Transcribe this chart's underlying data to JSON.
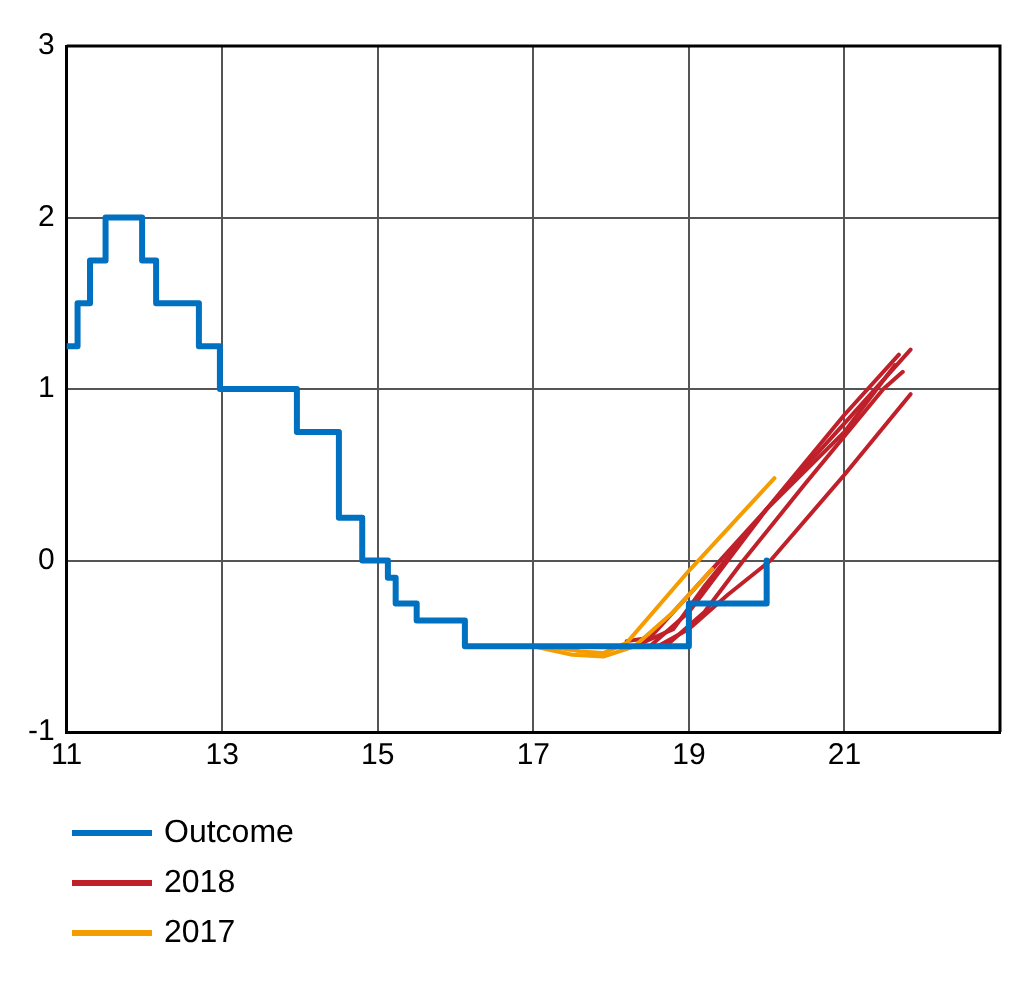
{
  "chart_data": {
    "type": "line",
    "legend": "bottom",
    "grid": true,
    "marker": "none",
    "line_style": "solid",
    "xlim": [
      11,
      23
    ],
    "xticks": [
      11,
      13,
      15,
      17,
      19,
      21
    ],
    "ylim": [
      -1,
      3
    ],
    "yticks": [
      -1,
      0,
      1,
      2,
      3
    ],
    "series": [
      {
        "name": "Outcome",
        "type": "step",
        "color": "#0070c0",
        "x": [
          11,
          11.14,
          11.3,
          11.5,
          11.97,
          12.15,
          12.7,
          12.97,
          13.96,
          14.5,
          14.8,
          15.13,
          15.23,
          15.5,
          16.12,
          19,
          20
        ],
        "values": [
          1.25,
          1.5,
          1.75,
          2,
          1.75,
          1.5,
          1.25,
          1,
          0.75,
          0.25,
          0,
          -0.1,
          -0.25,
          -0.35,
          -0.5,
          -0.25,
          0
        ]
      },
      {
        "name": "2017",
        "color": "#f59c00",
        "x": [
          17.2,
          17.6,
          17.9,
          18.2,
          19,
          20.1
        ],
        "values": [
          -0.5,
          -0.53,
          -0.54,
          -0.48,
          -0.06,
          0.48
        ]
      },
      {
        "color": "#f59c00",
        "x": [
          17,
          17.5,
          17.9,
          18.3,
          18.8,
          19.3
        ],
        "values": [
          -0.5,
          -0.55,
          -0.56,
          -0.5,
          -0.3,
          -0.05
        ]
      },
      {
        "name": "2018",
        "color": "#c0202a",
        "x": [
          18.2,
          18.5,
          19,
          20,
          21,
          21.65
        ],
        "values": [
          -0.47,
          -0.45,
          -0.2,
          0.3,
          0.75,
          1.14
        ]
      },
      {
        "color": "#c0202a",
        "x": [
          18.3,
          18.8,
          19.2,
          20,
          21,
          21.85
        ],
        "values": [
          -0.5,
          -0.4,
          -0.15,
          0.3,
          0.8,
          1.23
        ]
      },
      {
        "color": "#c0202a",
        "x": [
          18.6,
          19,
          19.5,
          20.05,
          21,
          21.85
        ],
        "values": [
          -0.5,
          -0.4,
          -0.2,
          0,
          0.5,
          0.97
        ]
      },
      {
        "color": "#c0202a",
        "x": [
          18.5,
          19,
          19.5,
          20,
          21,
          21.7
        ],
        "values": [
          -0.5,
          -0.3,
          0,
          0.3,
          0.85,
          1.2
        ]
      },
      {
        "color": "#c0202a",
        "x": [
          18.7,
          19.2,
          19.7,
          20.5,
          21.5,
          21.75
        ],
        "values": [
          -0.5,
          -0.3,
          0,
          0.45,
          1,
          1.1
        ]
      }
    ]
  }
}
